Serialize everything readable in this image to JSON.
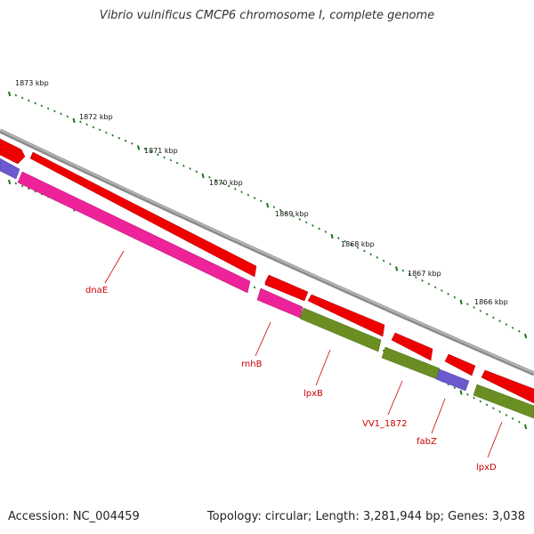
{
  "header": {
    "title": "Vibrio vulnificus CMCP6 chromosome I, complete genome"
  },
  "footer": {
    "accession": "Accession: NC_004459",
    "summary": "Topology: circular; Length: 3,281,944 bp; Genes: 3,038"
  },
  "ruler": {
    "tick_labels": [
      "1873 kbp",
      "1872 kbp",
      "1871 kbp",
      "1870 kbp",
      "1869 kbp",
      "1868 kbp",
      "1867 kbp",
      "1866 kbp"
    ]
  },
  "colors": {
    "backbone": "#8c8c8c",
    "forward_cds": "#ee0000",
    "reverse_cds_magenta": "#ee2299",
    "reverse_cds_green": "#6b8e23",
    "reverse_cds_blue": "#6a5acd",
    "tick": "#1a7a1a",
    "label": "#cc0000"
  },
  "genes": {
    "labels": [
      "dnaE",
      "rnhB",
      "lpxB",
      "VV1_1872",
      "fabZ",
      "lpxD"
    ]
  }
}
